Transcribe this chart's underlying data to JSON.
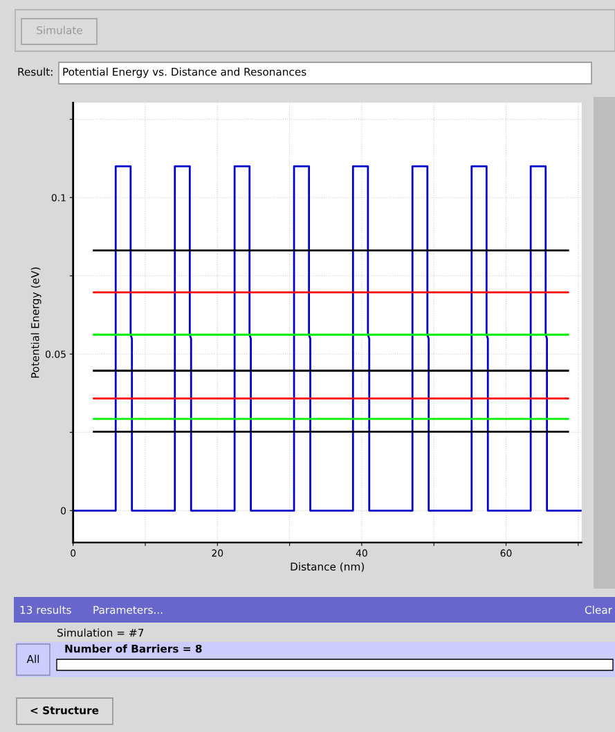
{
  "chart_data": {
    "type": "line",
    "title": "Potential Energy vs. Distance and Resonances",
    "xlabel": "Distance (nm)",
    "ylabel": "Potential Energy (eV)",
    "series": [
      {
        "color": "#0000cc",
        "x": [
          0,
          5.9,
          5.9,
          7.97,
          7.97,
          8.15,
          8.15,
          14.1,
          14.1,
          16.17,
          16.17,
          16.35,
          16.35,
          22.38,
          22.38,
          24.45,
          24.45,
          24.63,
          24.63,
          30.62,
          30.62,
          32.69,
          32.69,
          32.87,
          32.87,
          38.79,
          38.79,
          40.86,
          40.86,
          41.04,
          41.04,
          47.03,
          47.03,
          49.1,
          49.1,
          49.28,
          49.28,
          55.23,
          55.23,
          57.3,
          57.3,
          57.48,
          57.48,
          63.42,
          63.42,
          65.49,
          65.49,
          65.67,
          65.67,
          70.47
        ],
        "values": [
          0,
          0,
          0.11,
          0.11,
          0.0562,
          0.0549,
          0,
          0,
          0.11,
          0.11,
          0.0562,
          0.0549,
          0,
          0,
          0.11,
          0.11,
          0.0562,
          0.0549,
          0,
          0,
          0.11,
          0.11,
          0.0562,
          0.0549,
          0,
          0,
          0.11,
          0.11,
          0.0562,
          0.0549,
          0,
          0,
          0.11,
          0.11,
          0.0562,
          0.0549,
          0,
          0,
          0.11,
          0.11,
          0.0562,
          0.0549,
          0,
          0,
          0.11,
          0.11,
          0.0562,
          0.0549,
          0,
          0
        ]
      },
      {
        "color": "#000000",
        "x": [
          2.87,
          68.6
        ],
        "values": [
          0.0831,
          0.0831
        ]
      },
      {
        "color": "#ff0000",
        "x": [
          2.87,
          68.6
        ],
        "values": [
          0.0697,
          0.0697
        ]
      },
      {
        "color": "#00ee00",
        "x": [
          2.87,
          68.6
        ],
        "values": [
          0.0562,
          0.0562
        ]
      },
      {
        "color": "#000000",
        "x": [
          2.87,
          68.6
        ],
        "values": [
          0.0447,
          0.0447
        ]
      },
      {
        "color": "#ff0000",
        "x": [
          2.87,
          68.6
        ],
        "values": [
          0.0358,
          0.0358
        ]
      },
      {
        "color": "#00ee00",
        "x": [
          2.87,
          68.6
        ],
        "values": [
          0.0293,
          0.0293
        ]
      },
      {
        "color": "#000000",
        "x": [
          2.87,
          68.6
        ],
        "values": [
          0.0252,
          0.0252
        ]
      }
    ],
    "xlim": [
      0,
      70.47
    ],
    "xticks": [
      0,
      {
        "value": 10,
        "label": null
      },
      20,
      {
        "value": 30,
        "label": null
      },
      40,
      {
        "value": 50,
        "label": null
      },
      60,
      {
        "value": 70,
        "label": null
      }
    ],
    "ylim": [
      -0.0102,
      0.1303
    ],
    "yticks": [
      0,
      {
        "value": 0.025,
        "label": null
      },
      0.05,
      {
        "value": 0.075,
        "label": null
      },
      0.1,
      {
        "value": 0.125,
        "label": null
      }
    ],
    "grid": true,
    "marker": "none",
    "line_style": "solid",
    "annotations": [
      "Simulate",
      "Result:",
      "13 results",
      "Parameters...",
      "Clear",
      "Simulation = #7",
      "Number of Barriers = 8",
      "All",
      "< Structure"
    ]
  }
}
